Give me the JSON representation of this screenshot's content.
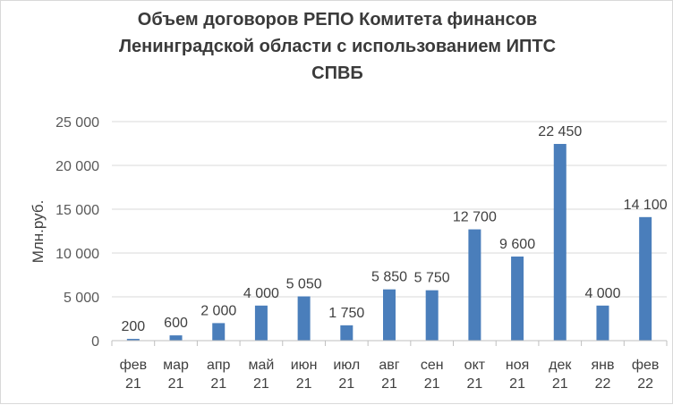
{
  "chart_data": {
    "type": "bar",
    "title_lines": [
      "Объем  договоров РЕПО Комитета финансов",
      "Ленинградской области с использованием ИПТС",
      "СПВБ"
    ],
    "ylabel": "Млн.руб.",
    "xlabel": "",
    "ylim": [
      0,
      25000
    ],
    "yticks": [
      {
        "value": 0,
        "label": "0"
      },
      {
        "value": 5000,
        "label": "5 000"
      },
      {
        "value": 10000,
        "label": "10 000"
      },
      {
        "value": 15000,
        "label": "15 000"
      },
      {
        "value": 20000,
        "label": "20 000"
      },
      {
        "value": 25000,
        "label": "25 000"
      }
    ],
    "grid": true,
    "legend": "none",
    "bar_color": "#4a7ebb",
    "categories": [
      [
        "фев",
        "21"
      ],
      [
        "мар",
        "21"
      ],
      [
        "апр",
        "21"
      ],
      [
        "май",
        "21"
      ],
      [
        "июн",
        "21"
      ],
      [
        "июл",
        "21"
      ],
      [
        "авг",
        "21"
      ],
      [
        "сен",
        "21"
      ],
      [
        "окт",
        "21"
      ],
      [
        "ноя",
        "21"
      ],
      [
        "дек",
        "21"
      ],
      [
        "янв",
        "22"
      ],
      [
        "фев",
        "22"
      ]
    ],
    "values": [
      200,
      600,
      2000,
      4000,
      5050,
      1750,
      5850,
      5750,
      12700,
      9600,
      22450,
      4000,
      14100
    ],
    "data_labels": [
      "200",
      "600",
      "2 000",
      "4 000",
      "5 050",
      "1 750",
      "5 850",
      "5 750",
      "12 700",
      "9 600",
      "22 450",
      "4 000",
      "14 100"
    ]
  }
}
